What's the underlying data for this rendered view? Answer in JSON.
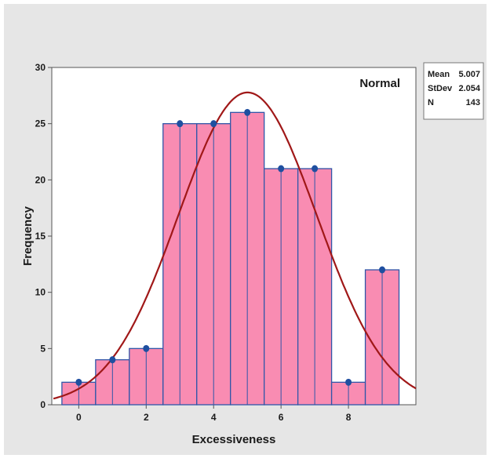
{
  "chart_data": {
    "type": "histogram",
    "xlabel": "Excessiveness",
    "ylabel": "Frequency",
    "annotation": "Normal",
    "xlim": [
      -0.8,
      10.0
    ],
    "ylim": [
      0,
      30
    ],
    "x_ticks": [
      0,
      2,
      4,
      6,
      8
    ],
    "y_ticks": [
      0,
      5,
      10,
      15,
      20,
      25,
      30
    ],
    "bins": [
      {
        "center": 0,
        "value": 2
      },
      {
        "center": 1,
        "value": 4
      },
      {
        "center": 2,
        "value": 5
      },
      {
        "center": 3,
        "value": 25
      },
      {
        "center": 4,
        "value": 25
      },
      {
        "center": 5,
        "value": 26
      },
      {
        "center": 6,
        "value": 21
      },
      {
        "center": 7,
        "value": 21
      },
      {
        "center": 8,
        "value": 2
      },
      {
        "center": 9,
        "value": 12
      }
    ],
    "bin_width": 1,
    "fit": {
      "distribution": "normal",
      "mean": 5.007,
      "stdev": 2.054,
      "n": 143
    },
    "stats": [
      {
        "label": "Mean",
        "value": "5.007"
      },
      {
        "label": "StDev",
        "value": "2.054"
      },
      {
        "label": "N",
        "value": "143"
      }
    ],
    "colors": {
      "background": "#e6e6e6",
      "plot_area": "#ffffff",
      "bar_fill": "#f98cb2",
      "bar_edge": "#3056a8",
      "marker": "#1f4fa0",
      "curve": "#a01818",
      "line": "#3056a8",
      "axis": "#555555"
    }
  }
}
